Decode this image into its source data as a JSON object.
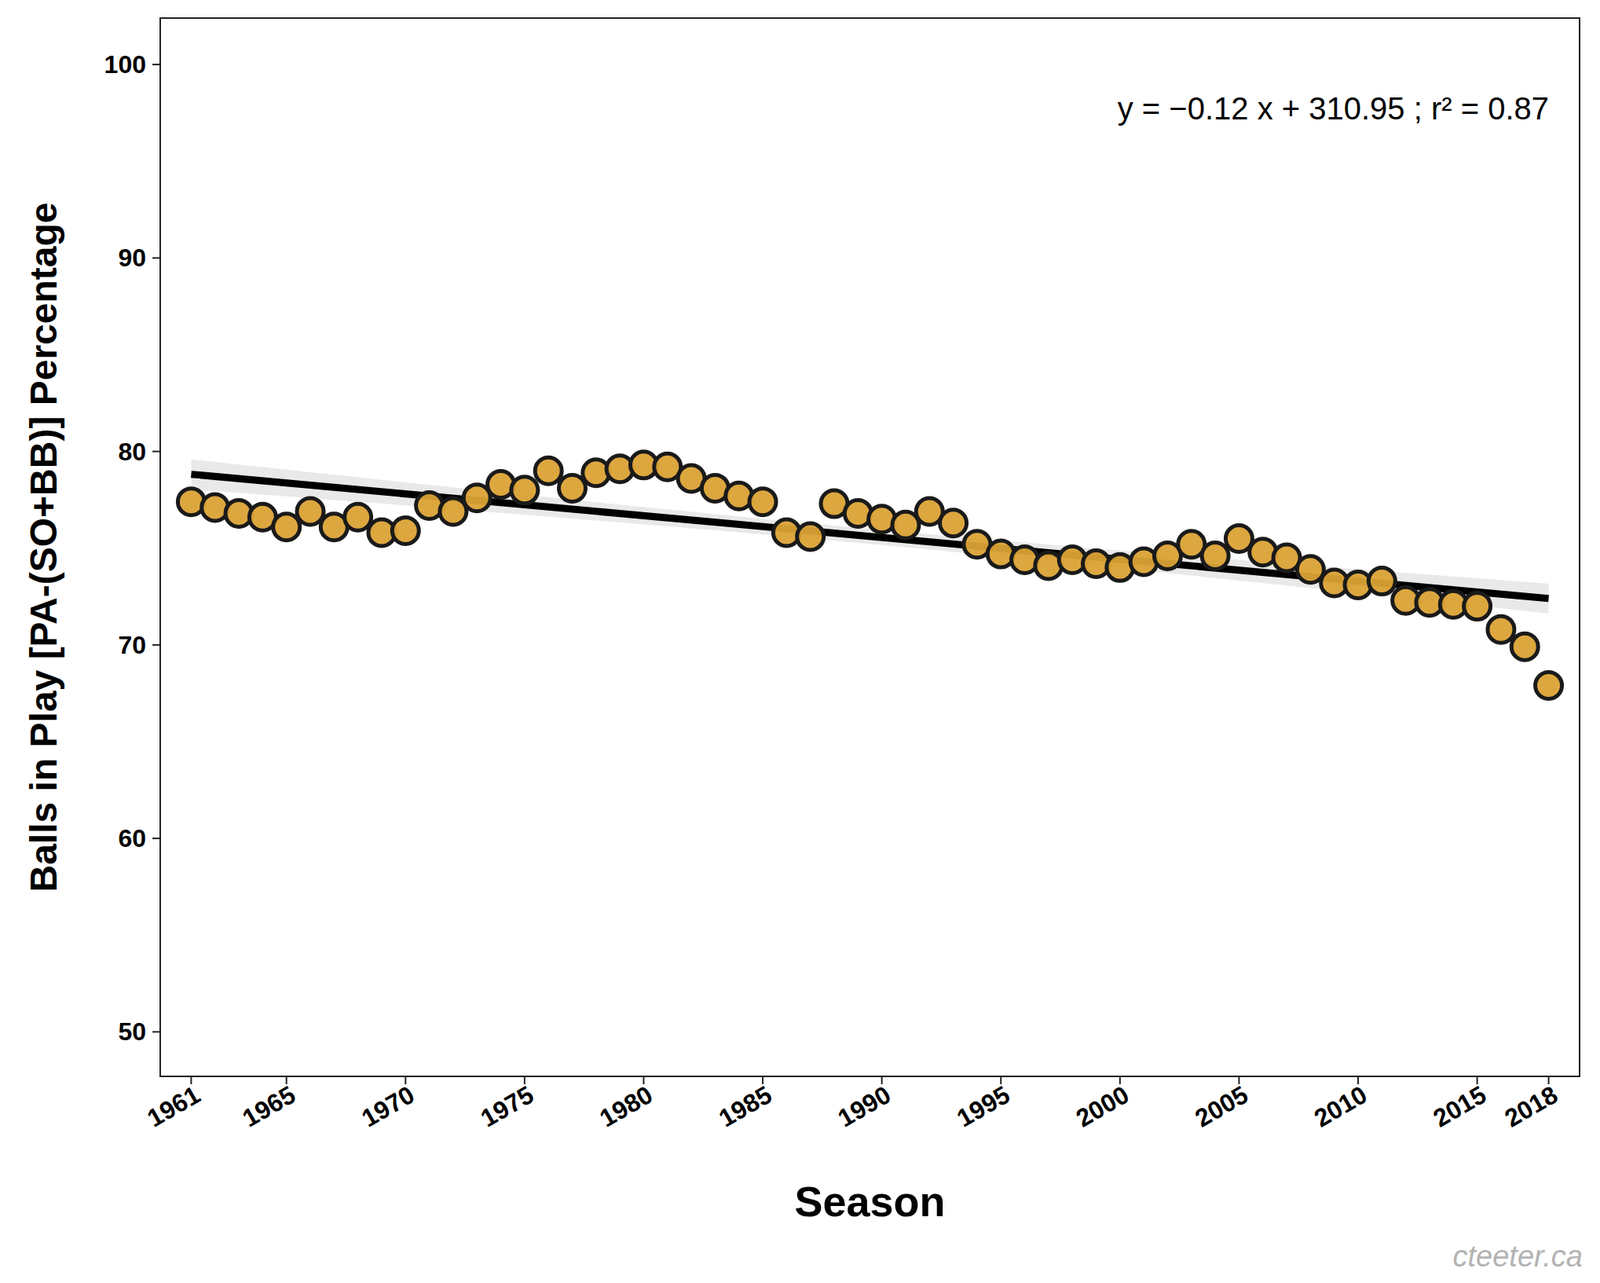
{
  "chart_data": {
    "type": "scatter",
    "x_label": "Season",
    "y_label": "Balls in Play [PA-(SO+BB)] Percentage",
    "annotation": "y = −0.12 x + 310.95 ; r² = 0.87",
    "source": "cteeter.ca",
    "color": "#dba235",
    "marker": "circle",
    "x": [
      1961,
      1962,
      1963,
      1964,
      1965,
      1966,
      1967,
      1968,
      1969,
      1970,
      1971,
      1972,
      1973,
      1974,
      1975,
      1976,
      1977,
      1978,
      1979,
      1980,
      1981,
      1982,
      1983,
      1984,
      1985,
      1986,
      1987,
      1988,
      1989,
      1990,
      1991,
      1992,
      1993,
      1994,
      1995,
      1996,
      1997,
      1998,
      1999,
      2000,
      2001,
      2002,
      2003,
      2004,
      2005,
      2006,
      2007,
      2008,
      2009,
      2010,
      2011,
      2012,
      2013,
      2014,
      2015,
      2016,
      2017,
      2018
    ],
    "values": [
      77.4,
      77.1,
      76.8,
      76.6,
      76.1,
      76.9,
      76.1,
      76.6,
      75.8,
      75.9,
      77.2,
      76.9,
      77.6,
      78.3,
      78.0,
      79.0,
      78.1,
      78.9,
      79.1,
      79.3,
      79.2,
      78.6,
      78.1,
      77.7,
      77.4,
      75.8,
      75.6,
      77.3,
      76.8,
      76.5,
      76.2,
      76.9,
      76.3,
      75.2,
      74.7,
      74.4,
      74.1,
      74.4,
      74.2,
      74.0,
      74.3,
      74.6,
      75.2,
      74.6,
      75.5,
      74.8,
      74.5,
      73.9,
      73.2,
      73.1,
      73.3,
      72.3,
      72.2,
      72.1,
      72.0,
      70.8,
      69.9,
      67.9
    ],
    "xlim": [
      1959.7,
      2019.3
    ],
    "ylim": [
      47.7,
      102.4
    ],
    "xticks": [
      1961,
      1965,
      1970,
      1975,
      1980,
      1985,
      1990,
      1995,
      2000,
      2005,
      2010,
      2015,
      2018
    ],
    "yticks": [
      50,
      60,
      70,
      80,
      90,
      100
    ]
  }
}
